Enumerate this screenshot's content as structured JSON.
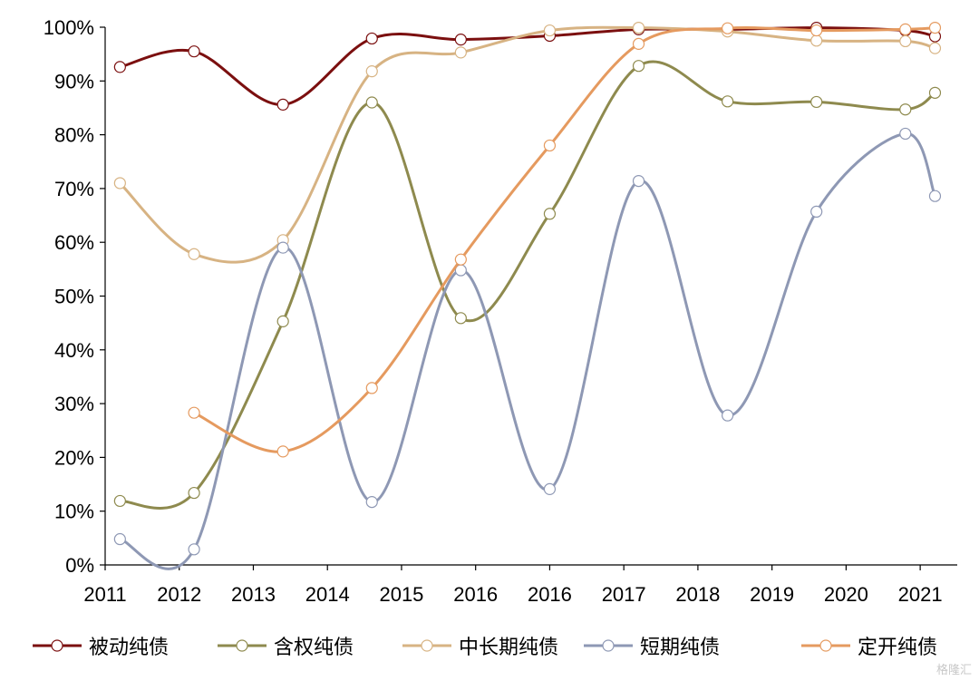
{
  "chart_data": {
    "type": "line",
    "title": "",
    "xlabel": "",
    "ylabel": "",
    "categories": [
      "2011",
      "2012",
      "2013",
      "2014",
      "2015",
      "2016",
      "2016",
      "2017",
      "2018",
      "2019",
      "2020",
      "2021"
    ],
    "y_ticks": [
      "0%",
      "10%",
      "20%",
      "30%",
      "40%",
      "50%",
      "60%",
      "70%",
      "80%",
      "90%",
      "100%"
    ],
    "ylim": [
      0,
      100
    ],
    "grid": false,
    "legend_position": "bottom",
    "series": [
      {
        "name": "被动纯债",
        "color": "#7b0f0f",
        "points": [
          [
            0.2,
            92.6
          ],
          [
            1.2,
            95.5
          ],
          [
            2.4,
            85.6
          ],
          [
            3.6,
            97.9
          ],
          [
            4.8,
            97.7
          ],
          [
            6.0,
            98.4
          ],
          [
            7.2,
            99.6
          ],
          [
            8.4,
            99.6
          ],
          [
            9.6,
            99.9
          ],
          [
            10.8,
            99.4
          ],
          [
            11.2,
            98.3
          ]
        ]
      },
      {
        "name": "含权纯债",
        "color": "#8e8a4e",
        "points": [
          [
            0.2,
            11.9
          ],
          [
            1.2,
            13.4
          ],
          [
            2.4,
            45.3
          ],
          [
            3.6,
            86.0
          ],
          [
            4.8,
            45.9
          ],
          [
            6.0,
            65.3
          ],
          [
            7.2,
            92.8
          ],
          [
            8.4,
            86.2
          ],
          [
            9.6,
            86.1
          ],
          [
            10.8,
            84.7
          ],
          [
            11.2,
            87.8
          ]
        ]
      },
      {
        "name": "中长期纯债",
        "color": "#d7b383",
        "points": [
          [
            0.2,
            71.0
          ],
          [
            1.2,
            57.8
          ],
          [
            2.4,
            60.4
          ],
          [
            3.6,
            91.8
          ],
          [
            4.8,
            95.3
          ],
          [
            6.0,
            99.4
          ],
          [
            7.2,
            99.9
          ],
          [
            8.4,
            99.2
          ],
          [
            9.6,
            97.5
          ],
          [
            10.8,
            97.4
          ],
          [
            11.2,
            96.1
          ]
        ]
      },
      {
        "name": "短期纯债",
        "color": "#8e98b4",
        "points": [
          [
            0.2,
            4.8
          ],
          [
            1.2,
            2.9
          ],
          [
            2.4,
            59.0
          ],
          [
            3.6,
            11.7
          ],
          [
            4.8,
            54.8
          ],
          [
            6.0,
            14.1
          ],
          [
            7.2,
            71.4
          ],
          [
            8.4,
            27.8
          ],
          [
            9.6,
            65.7
          ],
          [
            10.8,
            80.2
          ],
          [
            11.2,
            68.6
          ]
        ]
      },
      {
        "name": "定开纯债",
        "color": "#e59a5f",
        "points": [
          [
            1.2,
            28.3
          ],
          [
            2.4,
            21.1
          ],
          [
            3.6,
            32.9
          ],
          [
            4.8,
            56.8
          ],
          [
            6.0,
            78.0
          ],
          [
            7.2,
            96.9
          ],
          [
            8.4,
            99.8
          ],
          [
            9.6,
            99.4
          ],
          [
            10.8,
            99.6
          ],
          [
            11.2,
            99.9
          ]
        ]
      }
    ]
  },
  "watermark": "格隆汇"
}
